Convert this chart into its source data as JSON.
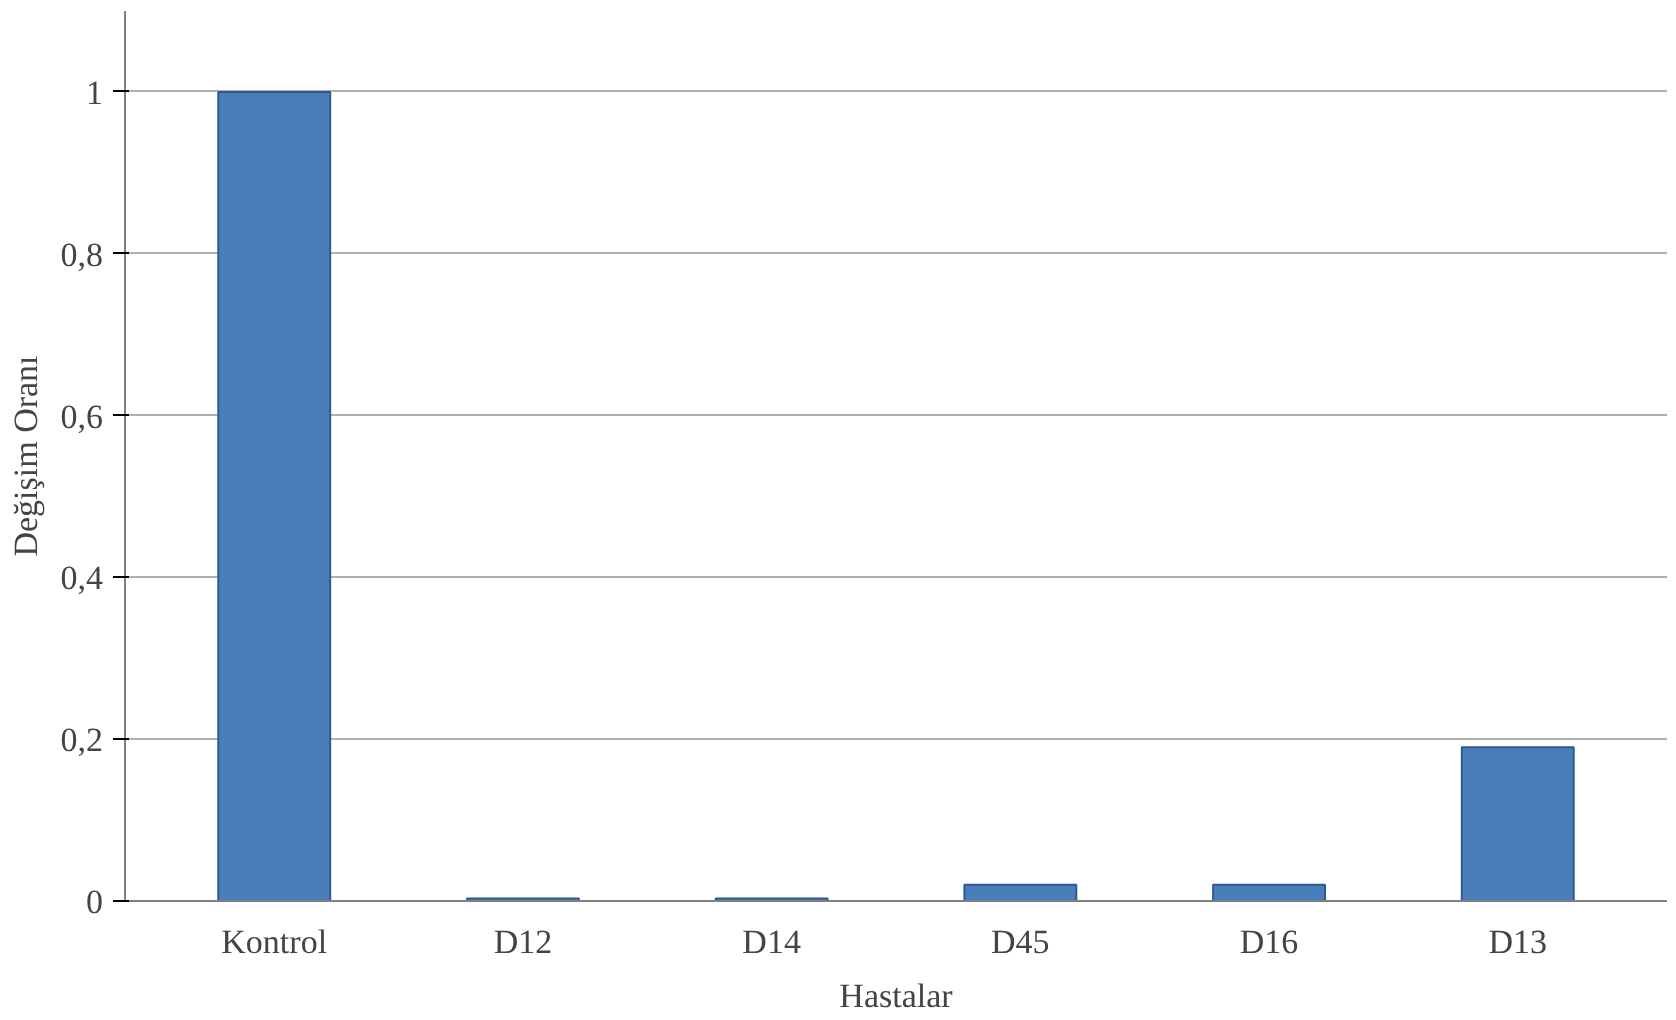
{
  "chart_data": {
    "type": "bar",
    "xlabel": "Hastalar",
    "ylabel": "Değişim Oranı",
    "categories": [
      "Kontrol",
      "D12",
      "D14",
      "D45",
      "D16",
      "D13"
    ],
    "values": [
      1,
      0.003,
      0.003,
      0.02,
      0.02,
      0.19
    ],
    "color": "#4a7ebb",
    "ylim": [
      0,
      1.1
    ],
    "yticks": [
      0,
      {
        "value": 0.2,
        "label": "0,2"
      },
      {
        "value": 0.4,
        "label": "0,4"
      },
      {
        "value": 0.6,
        "label": "0,6"
      },
      {
        "value": 0.8,
        "label": "0,8"
      },
      1
    ],
    "grid": "y"
  }
}
